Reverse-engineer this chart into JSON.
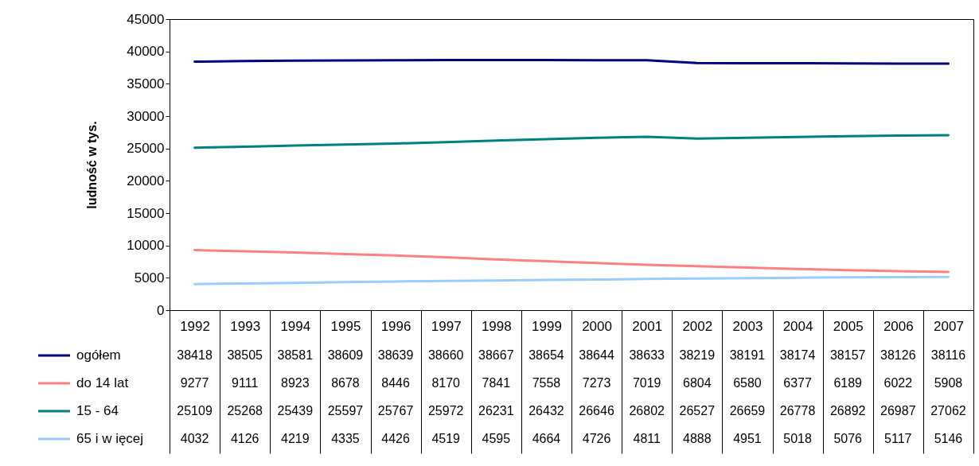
{
  "chart_data": {
    "type": "line",
    "ylabel": "ludność w tys.",
    "categories": [
      "1992",
      "1993",
      "1994",
      "1995",
      "1996",
      "1997",
      "1998",
      "1999",
      "2000",
      "2001",
      "2002",
      "2003",
      "2004",
      "2005",
      "2006",
      "2007"
    ],
    "series": [
      {
        "name": "ogółem",
        "color": "#000080",
        "values": [
          38418,
          38505,
          38581,
          38609,
          38639,
          38660,
          38667,
          38654,
          38644,
          38633,
          38219,
          38191,
          38174,
          38157,
          38126,
          38116
        ]
      },
      {
        "name": "do 14 lat",
        "color": "#ff8080",
        "values": [
          9277,
          9111,
          8923,
          8678,
          8446,
          8170,
          7841,
          7558,
          7273,
          7019,
          6804,
          6580,
          6377,
          6189,
          6022,
          5908
        ]
      },
      {
        "name": "15 - 64",
        "color": "#008080",
        "values": [
          25109,
          25268,
          25439,
          25597,
          25767,
          25972,
          26231,
          26432,
          26646,
          26802,
          26527,
          26659,
          26778,
          26892,
          26987,
          27062
        ]
      },
      {
        "name": "65 i w ięcej",
        "color": "#99ccff",
        "values": [
          4032,
          4126,
          4219,
          4335,
          4426,
          4519,
          4595,
          4664,
          4726,
          4811,
          4888,
          4951,
          5018,
          5076,
          5117,
          5146
        ]
      }
    ],
    "ylim": [
      0,
      45000
    ],
    "yticks": [
      0,
      5000,
      10000,
      15000,
      20000,
      25000,
      30000,
      35000,
      40000,
      45000
    ],
    "data_labels": true,
    "legend": "bottom left"
  }
}
